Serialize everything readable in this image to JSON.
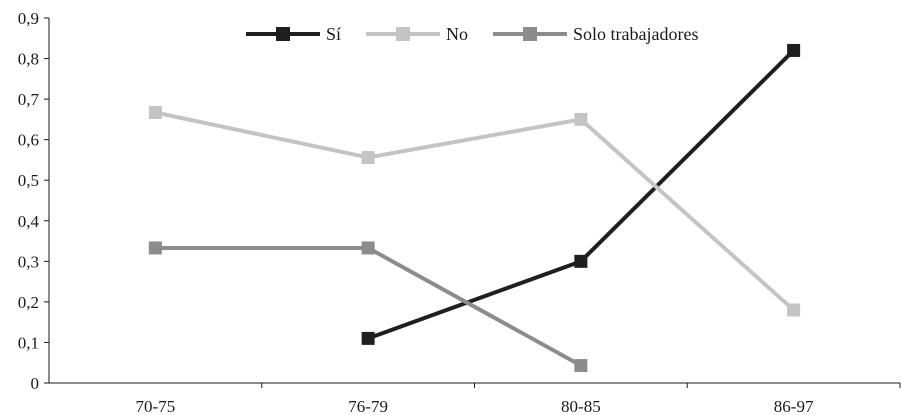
{
  "chart_data": {
    "type": "line",
    "categories": [
      "70-75",
      "76-79",
      "80-85",
      "86-97"
    ],
    "ylim": [
      0,
      0.9
    ],
    "yticks": [
      0,
      0.1,
      0.2,
      0.3,
      0.4,
      0.5,
      0.6,
      0.7,
      0.8,
      0.9
    ],
    "ytick_labels": [
      "0",
      "0,1",
      "0,2",
      "0,3",
      "0,4",
      "0,5",
      "0,6",
      "0,7",
      "0,8",
      "0,9"
    ],
    "grid": false,
    "legend_position": "top-center",
    "series": [
      {
        "name": "Sí",
        "color": "#1f1f1f",
        "values": [
          null,
          0.11,
          0.3,
          0.82
        ]
      },
      {
        "name": "No",
        "color": "#c4c4c4",
        "values": [
          0.667,
          0.556,
          0.65,
          0.18
        ]
      },
      {
        "name": "Solo trabajadores",
        "color": "#8c8c8c",
        "values": [
          0.333,
          0.333,
          0.043,
          null
        ]
      }
    ]
  }
}
